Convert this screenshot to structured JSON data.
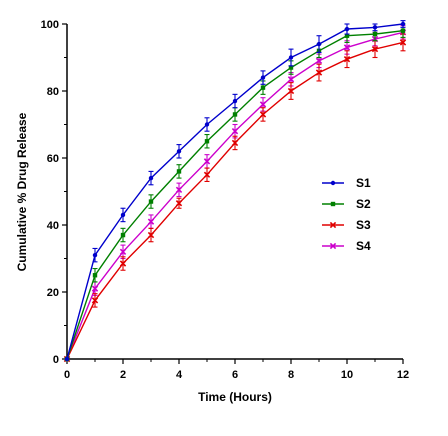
{
  "chart_data": {
    "type": "line",
    "title": "",
    "xlabel": "Time (Hours)",
    "ylabel": "Cumulative % Drug Release",
    "xlim": [
      0,
      12
    ],
    "ylim": [
      0,
      100
    ],
    "xticks": [
      0,
      2,
      4,
      6,
      8,
      10,
      12
    ],
    "yticks": [
      0,
      20,
      40,
      60,
      80,
      100
    ],
    "grid": false,
    "legend_position": "right-center",
    "x": [
      0,
      1,
      2,
      3,
      4,
      5,
      6,
      7,
      8,
      9,
      10,
      11,
      12
    ],
    "series": [
      {
        "name": "S1",
        "color": "#0000cc",
        "marker": "circle",
        "values": [
          0,
          31,
          43,
          54,
          62,
          70,
          77,
          84,
          90,
          94,
          98.5,
          99,
          100
        ],
        "errors": [
          0,
          2,
          2,
          2,
          2,
          2,
          2,
          2,
          2.5,
          2.5,
          1.5,
          1,
          1
        ]
      },
      {
        "name": "S2",
        "color": "#008000",
        "marker": "square",
        "values": [
          0,
          25,
          37,
          47,
          56,
          65,
          73,
          81,
          87,
          92,
          96.5,
          97,
          98
        ],
        "errors": [
          0,
          2,
          2,
          2,
          2,
          2,
          2,
          2,
          2,
          2,
          2,
          2,
          2
        ]
      },
      {
        "name": "S3",
        "color": "#e00000",
        "marker": "cross",
        "values": [
          0,
          17.5,
          28.5,
          37,
          46.5,
          55,
          64.5,
          73,
          80,
          85.5,
          89.5,
          92.5,
          94.5
        ],
        "errors": [
          0,
          2,
          2,
          2,
          1.5,
          2,
          2,
          2,
          2.5,
          2.5,
          2.5,
          2.5,
          2.5
        ]
      },
      {
        "name": "S4",
        "color": "#cc00cc",
        "marker": "cross",
        "values": [
          0,
          21,
          32,
          41,
          50.5,
          59,
          68,
          76,
          83.5,
          89,
          93,
          95.5,
          97.5
        ],
        "errors": [
          0,
          2,
          2,
          2,
          2,
          2,
          2,
          2,
          2,
          2,
          2,
          2,
          2
        ]
      }
    ]
  }
}
